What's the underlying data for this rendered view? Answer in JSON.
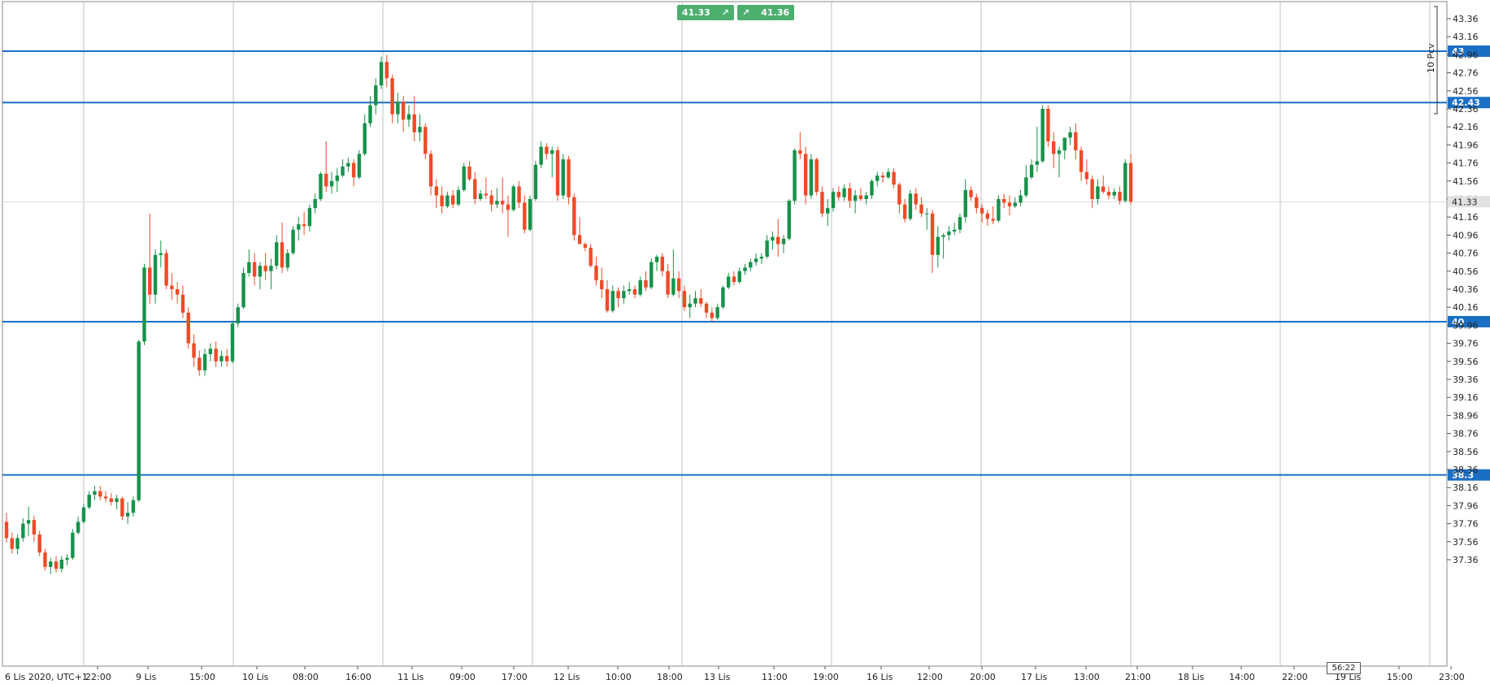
{
  "trade_panel": {
    "sell_price": "41.33",
    "buy_price": "41.36",
    "arrow_icon": "arrow-up-right-icon"
  },
  "volume_label": "10 Pcv",
  "timer": "56:22",
  "current_price_label": "41.33",
  "colors": {
    "up": "#16924a",
    "down": "#ee4b27",
    "level_line": "#1a6fc4",
    "grid": "#b0b0b0"
  },
  "chart_data": {
    "type": "candlestick",
    "y_axis_labels": [
      "43.36",
      "43.16",
      "42.96",
      "42.76",
      "42.56",
      "42.36",
      "42.16",
      "41.96",
      "41.76",
      "41.56",
      "41.36",
      "41.16",
      "40.96",
      "40.76",
      "40.56",
      "40.36",
      "40.16",
      "39.96",
      "39.76",
      "39.56",
      "39.36",
      "39.16",
      "38.96",
      "38.76",
      "38.56",
      "38.36",
      "38.16",
      "37.96",
      "37.76",
      "37.56",
      "37.36"
    ],
    "ylim": [
      37.2,
      43.5
    ],
    "x_axis_labels": [
      "6 Lis 2020, UTC+1",
      "22:00",
      "9 Lis",
      "15:00",
      "10 Lis",
      "08:00",
      "16:00",
      "11 Lis",
      "09:00",
      "17:00",
      "12 Lis",
      "10:00",
      "18:00",
      "13 Lis",
      "11:00",
      "19:00",
      "16 Lis",
      "12:00",
      "20:00",
      "17 Lis",
      "13:00",
      "21:00",
      "18 Lis",
      "14:00",
      "22:00",
      "19 Lis",
      "15:00",
      "23:00"
    ],
    "horizontal_levels": [
      {
        "value": 43,
        "label": "43"
      },
      {
        "value": 42.43,
        "label": "42.43"
      },
      {
        "value": 40,
        "label": "40"
      },
      {
        "value": 38.3,
        "label": "38.3"
      }
    ],
    "current_price": 41.33,
    "candles": [
      [
        37.78,
        37.88,
        37.55,
        37.6
      ],
      [
        37.6,
        37.66,
        37.43,
        37.48
      ],
      [
        37.48,
        37.64,
        37.42,
        37.6
      ],
      [
        37.6,
        37.82,
        37.56,
        37.76
      ],
      [
        37.76,
        37.95,
        37.62,
        37.8
      ],
      [
        37.8,
        37.85,
        37.56,
        37.64
      ],
      [
        37.64,
        37.68,
        37.4,
        37.44
      ],
      [
        37.44,
        37.48,
        37.24,
        37.28
      ],
      [
        37.28,
        37.38,
        37.2,
        37.34
      ],
      [
        37.34,
        37.4,
        37.22,
        37.26
      ],
      [
        37.26,
        37.4,
        37.22,
        37.36
      ],
      [
        37.36,
        37.42,
        37.3,
        37.38
      ],
      [
        37.38,
        37.7,
        37.36,
        37.66
      ],
      [
        37.66,
        37.84,
        37.64,
        37.78
      ],
      [
        37.78,
        37.98,
        37.76,
        37.94
      ],
      [
        37.94,
        38.12,
        37.92,
        38.08
      ],
      [
        38.08,
        38.18,
        38.02,
        38.12
      ],
      [
        38.12,
        38.18,
        38.02,
        38.06
      ],
      [
        38.06,
        38.12,
        38.0,
        38.04
      ],
      [
        38.04,
        38.1,
        37.96,
        38.0
      ],
      [
        38.0,
        38.08,
        37.92,
        38.04
      ],
      [
        38.04,
        38.06,
        37.8,
        37.84
      ],
      [
        37.84,
        38.0,
        37.76,
        37.88
      ],
      [
        37.88,
        38.06,
        37.84,
        38.02
      ],
      [
        38.02,
        39.8,
        38.0,
        39.78
      ],
      [
        39.78,
        40.64,
        39.74,
        40.6
      ],
      [
        40.6,
        41.2,
        40.2,
        40.3
      ],
      [
        40.3,
        40.8,
        40.2,
        40.74
      ],
      [
        40.74,
        40.9,
        40.6,
        40.76
      ],
      [
        40.76,
        40.8,
        40.36,
        40.4
      ],
      [
        40.4,
        40.54,
        40.24,
        40.36
      ],
      [
        40.36,
        40.44,
        40.2,
        40.3
      ],
      [
        40.3,
        40.4,
        40.04,
        40.1
      ],
      [
        40.1,
        40.16,
        39.7,
        39.76
      ],
      [
        39.76,
        39.86,
        39.5,
        39.6
      ],
      [
        39.6,
        39.68,
        39.4,
        39.46
      ],
      [
        39.46,
        39.7,
        39.4,
        39.64
      ],
      [
        39.64,
        39.76,
        39.56,
        39.7
      ],
      [
        39.7,
        39.78,
        39.5,
        39.56
      ],
      [
        39.56,
        39.68,
        39.5,
        39.62
      ],
      [
        39.62,
        39.7,
        39.5,
        39.56
      ],
      [
        39.56,
        40.0,
        39.54,
        39.98
      ],
      [
        39.98,
        40.2,
        39.94,
        40.16
      ],
      [
        40.16,
        40.6,
        40.14,
        40.54
      ],
      [
        40.54,
        40.8,
        40.5,
        40.66
      ],
      [
        40.66,
        40.76,
        40.4,
        40.5
      ],
      [
        40.5,
        40.66,
        40.36,
        40.62
      ],
      [
        40.62,
        40.76,
        40.46,
        40.56
      ],
      [
        40.56,
        40.7,
        40.36,
        40.62
      ],
      [
        40.62,
        40.96,
        40.58,
        40.88
      ],
      [
        40.88,
        41.1,
        40.54,
        40.6
      ],
      [
        40.6,
        40.8,
        40.56,
        40.76
      ],
      [
        40.76,
        41.06,
        40.74,
        41.02
      ],
      [
        41.02,
        41.16,
        40.9,
        41.08
      ],
      [
        41.08,
        41.22,
        40.96,
        41.06
      ],
      [
        41.06,
        41.3,
        41.0,
        41.26
      ],
      [
        41.26,
        41.42,
        41.2,
        41.36
      ],
      [
        41.36,
        41.66,
        41.34,
        41.64
      ],
      [
        41.64,
        42.0,
        41.44,
        41.5
      ],
      [
        41.5,
        41.66,
        41.42,
        41.56
      ],
      [
        41.56,
        41.7,
        41.44,
        41.62
      ],
      [
        41.62,
        41.8,
        41.6,
        41.72
      ],
      [
        41.72,
        41.82,
        41.66,
        41.76
      ],
      [
        41.76,
        41.8,
        41.5,
        41.6
      ],
      [
        41.6,
        41.9,
        41.58,
        41.86
      ],
      [
        41.86,
        42.3,
        41.84,
        42.2
      ],
      [
        42.2,
        42.5,
        42.16,
        42.4
      ],
      [
        42.4,
        42.7,
        42.3,
        42.62
      ],
      [
        42.62,
        42.94,
        42.58,
        42.88
      ],
      [
        42.88,
        42.96,
        42.6,
        42.7
      ],
      [
        42.7,
        42.74,
        42.2,
        42.3
      ],
      [
        42.3,
        42.54,
        42.2,
        42.44
      ],
      [
        42.44,
        42.5,
        42.1,
        42.24
      ],
      [
        42.24,
        42.4,
        42.16,
        42.3
      ],
      [
        42.3,
        42.5,
        42.0,
        42.1
      ],
      [
        42.1,
        42.3,
        42.0,
        42.16
      ],
      [
        42.16,
        42.2,
        41.8,
        41.86
      ],
      [
        41.86,
        41.9,
        41.4,
        41.5
      ],
      [
        41.5,
        41.58,
        41.26,
        41.4
      ],
      [
        41.4,
        41.5,
        41.2,
        41.28
      ],
      [
        41.28,
        41.44,
        41.26,
        41.4
      ],
      [
        41.4,
        41.46,
        41.26,
        41.3
      ],
      [
        41.3,
        41.5,
        41.28,
        41.46
      ],
      [
        41.46,
        41.76,
        41.44,
        41.72
      ],
      [
        41.72,
        41.78,
        41.56,
        41.58
      ],
      [
        41.58,
        41.66,
        41.3,
        41.36
      ],
      [
        41.36,
        41.46,
        41.34,
        41.42
      ],
      [
        41.42,
        41.6,
        41.36,
        41.4
      ],
      [
        41.4,
        41.46,
        41.22,
        41.3
      ],
      [
        41.3,
        41.48,
        41.26,
        41.34
      ],
      [
        41.34,
        41.6,
        41.2,
        41.3
      ],
      [
        41.3,
        41.4,
        40.94,
        41.24
      ],
      [
        41.24,
        41.52,
        41.22,
        41.5
      ],
      [
        41.5,
        41.56,
        41.26,
        41.32
      ],
      [
        41.32,
        41.4,
        40.98,
        41.02
      ],
      [
        41.02,
        41.4,
        41.0,
        41.36
      ],
      [
        41.36,
        41.78,
        41.34,
        41.74
      ],
      [
        41.74,
        42.0,
        41.7,
        41.94
      ],
      [
        41.94,
        41.98,
        41.8,
        41.86
      ],
      [
        41.86,
        41.94,
        41.6,
        41.9
      ],
      [
        41.9,
        41.94,
        41.34,
        41.4
      ],
      [
        41.4,
        41.86,
        41.36,
        41.8
      ],
      [
        41.8,
        41.84,
        41.3,
        41.38
      ],
      [
        41.38,
        41.42,
        40.9,
        40.96
      ],
      [
        40.96,
        41.16,
        40.86,
        40.86
      ],
      [
        40.86,
        40.88,
        40.78,
        40.82
      ],
      [
        40.82,
        40.86,
        40.6,
        40.62
      ],
      [
        40.62,
        40.72,
        40.4,
        40.46
      ],
      [
        40.46,
        40.6,
        40.26,
        40.36
      ],
      [
        40.36,
        40.46,
        40.1,
        40.12
      ],
      [
        40.12,
        40.4,
        40.1,
        40.34
      ],
      [
        40.34,
        40.38,
        40.16,
        40.26
      ],
      [
        40.26,
        40.4,
        40.2,
        40.34
      ],
      [
        40.34,
        40.44,
        40.3,
        40.36
      ],
      [
        40.36,
        40.4,
        40.26,
        40.3
      ],
      [
        40.3,
        40.5,
        40.28,
        40.46
      ],
      [
        40.46,
        40.56,
        40.34,
        40.38
      ],
      [
        40.38,
        40.7,
        40.36,
        40.66
      ],
      [
        40.66,
        40.74,
        40.56,
        40.72
      ],
      [
        40.72,
        40.76,
        40.5,
        40.56
      ],
      [
        40.56,
        40.64,
        40.26,
        40.3
      ],
      [
        40.3,
        40.8,
        40.28,
        40.48
      ],
      [
        40.48,
        40.56,
        40.26,
        40.34
      ],
      [
        40.34,
        40.4,
        40.12,
        40.16
      ],
      [
        40.16,
        40.3,
        40.04,
        40.2
      ],
      [
        40.2,
        40.34,
        40.16,
        40.26
      ],
      [
        40.26,
        40.36,
        40.16,
        40.2
      ],
      [
        40.2,
        40.22,
        40.04,
        40.1
      ],
      [
        40.1,
        40.16,
        40.0,
        40.04
      ],
      [
        40.04,
        40.2,
        40.02,
        40.16
      ],
      [
        40.16,
        40.4,
        40.14,
        40.38
      ],
      [
        40.38,
        40.54,
        40.36,
        40.5
      ],
      [
        40.5,
        40.56,
        40.4,
        40.44
      ],
      [
        40.44,
        40.6,
        40.42,
        40.56
      ],
      [
        40.56,
        40.64,
        40.52,
        40.6
      ],
      [
        40.6,
        40.7,
        40.56,
        40.66
      ],
      [
        40.66,
        40.76,
        40.62,
        40.7
      ],
      [
        40.7,
        40.76,
        40.64,
        40.72
      ],
      [
        40.72,
        40.96,
        40.7,
        40.9
      ],
      [
        40.9,
        41.0,
        40.8,
        40.94
      ],
      [
        40.94,
        41.14,
        40.72,
        40.86
      ],
      [
        40.86,
        40.96,
        40.76,
        40.92
      ],
      [
        40.92,
        41.36,
        40.9,
        41.34
      ],
      [
        41.34,
        41.92,
        41.3,
        41.9
      ],
      [
        41.9,
        42.1,
        41.8,
        41.86
      ],
      [
        41.86,
        41.94,
        41.3,
        41.4
      ],
      [
        41.4,
        41.86,
        41.36,
        41.8
      ],
      [
        41.8,
        41.82,
        41.4,
        41.44
      ],
      [
        41.44,
        41.5,
        41.16,
        41.2
      ],
      [
        41.2,
        41.36,
        41.06,
        41.26
      ],
      [
        41.26,
        41.48,
        41.22,
        41.44
      ],
      [
        41.44,
        41.5,
        41.34,
        41.38
      ],
      [
        41.38,
        41.52,
        41.34,
        41.48
      ],
      [
        41.48,
        41.54,
        41.26,
        41.34
      ],
      [
        41.34,
        41.46,
        41.2,
        41.4
      ],
      [
        41.4,
        41.48,
        41.34,
        41.36
      ],
      [
        41.36,
        41.44,
        41.3,
        41.4
      ],
      [
        41.4,
        41.58,
        41.36,
        41.56
      ],
      [
        41.56,
        41.66,
        41.5,
        41.62
      ],
      [
        41.62,
        41.66,
        41.54,
        41.6
      ],
      [
        41.6,
        41.7,
        41.58,
        41.66
      ],
      [
        41.66,
        41.7,
        41.48,
        41.52
      ],
      [
        41.52,
        41.54,
        41.2,
        41.3
      ],
      [
        41.3,
        41.36,
        41.1,
        41.14
      ],
      [
        41.14,
        41.46,
        41.12,
        41.42
      ],
      [
        41.42,
        41.48,
        41.24,
        41.3
      ],
      [
        41.3,
        41.38,
        41.16,
        41.2
      ],
      [
        41.2,
        41.26,
        41.02,
        41.2
      ],
      [
        41.2,
        41.24,
        40.54,
        40.74
      ],
      [
        40.74,
        41.06,
        40.6,
        40.94
      ],
      [
        40.94,
        40.98,
        40.7,
        40.96
      ],
      [
        40.96,
        41.06,
        40.9,
        41.0
      ],
      [
        41.0,
        41.1,
        40.96,
        41.02
      ],
      [
        41.02,
        41.2,
        40.98,
        41.16
      ],
      [
        41.16,
        41.58,
        41.1,
        41.46
      ],
      [
        41.46,
        41.5,
        41.34,
        41.38
      ],
      [
        41.38,
        41.42,
        41.2,
        41.26
      ],
      [
        41.26,
        41.3,
        41.1,
        41.2
      ],
      [
        41.2,
        41.24,
        41.06,
        41.14
      ],
      [
        41.14,
        41.28,
        41.08,
        41.12
      ],
      [
        41.12,
        41.4,
        41.1,
        41.36
      ],
      [
        41.36,
        41.42,
        41.26,
        41.32
      ],
      [
        41.32,
        41.4,
        41.18,
        41.28
      ],
      [
        41.28,
        41.38,
        41.26,
        41.32
      ],
      [
        41.32,
        41.46,
        41.28,
        41.4
      ],
      [
        41.4,
        41.74,
        41.38,
        41.6
      ],
      [
        41.6,
        41.8,
        41.58,
        41.74
      ],
      [
        41.74,
        42.16,
        41.66,
        41.78
      ],
      [
        41.78,
        42.4,
        41.76,
        42.36
      ],
      [
        42.36,
        42.4,
        41.94,
        42.0
      ],
      [
        42.0,
        42.1,
        41.7,
        41.86
      ],
      [
        41.86,
        41.94,
        41.6,
        41.9
      ],
      [
        41.9,
        42.0,
        41.8,
        42.04
      ],
      [
        42.04,
        42.16,
        41.96,
        42.1
      ],
      [
        42.1,
        42.2,
        41.8,
        41.9
      ],
      [
        41.9,
        41.94,
        41.56,
        41.66
      ],
      [
        41.66,
        41.8,
        41.52,
        41.58
      ],
      [
        41.58,
        41.62,
        41.26,
        41.36
      ],
      [
        41.36,
        41.58,
        41.3,
        41.5
      ],
      [
        41.5,
        41.62,
        41.42,
        41.44
      ],
      [
        41.44,
        41.5,
        41.36,
        41.4
      ],
      [
        41.4,
        41.48,
        41.36,
        41.44
      ],
      [
        41.44,
        41.5,
        41.3,
        41.34
      ],
      [
        41.34,
        41.8,
        41.32,
        41.76
      ],
      [
        41.76,
        41.86,
        41.3,
        41.33
      ]
    ]
  }
}
